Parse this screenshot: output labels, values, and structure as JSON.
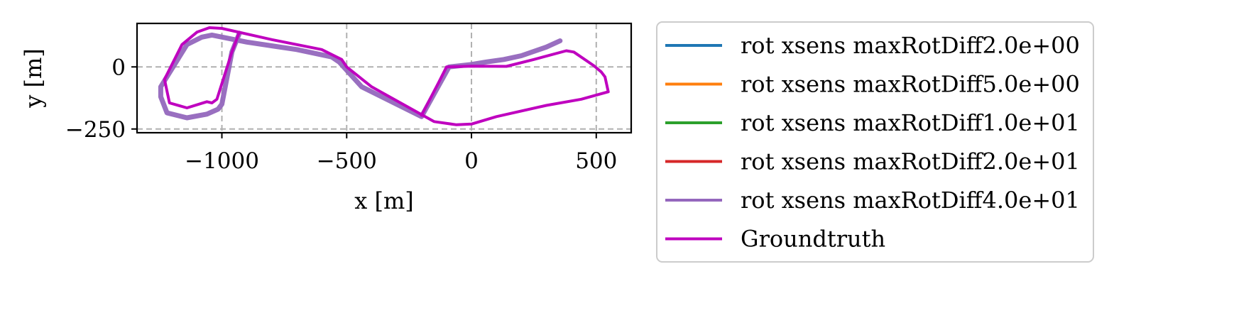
{
  "chart_data": {
    "type": "line",
    "xlabel": "x [m]",
    "ylabel": "y [m]",
    "xlim": [
      -1340,
      640
    ],
    "ylim": [
      -265,
      175
    ],
    "xticks": [
      -1000,
      -500,
      0,
      500
    ],
    "xtick_labels": [
      "−1000",
      "−500",
      "0",
      "500"
    ],
    "yticks": [
      -250,
      0
    ],
    "ytick_labels": [
      "−250",
      "0"
    ],
    "grid": true,
    "legend_position": "outside-right",
    "series": [
      {
        "name": "rot xsens maxRotDiff2.0e+00",
        "color": "#1f77b4",
        "points": []
      },
      {
        "name": "rot xsens maxRotDiff5.0e+00",
        "color": "#ff7f0e",
        "points": []
      },
      {
        "name": "rot xsens maxRotDiff1.0e+01",
        "color": "#2ca02c",
        "points": []
      },
      {
        "name": "rot xsens maxRotDiff2.0e+01",
        "color": "#d62728",
        "points": []
      },
      {
        "name": "rot xsens maxRotDiff4.0e+01",
        "color": "#9467bd",
        "points": [
          [
            355,
            105
          ],
          [
            300,
            80
          ],
          [
            200,
            45
          ],
          [
            130,
            30
          ],
          [
            60,
            20
          ],
          [
            0,
            10
          ],
          [
            -90,
            0
          ],
          [
            -200,
            -200
          ],
          [
            -440,
            -80
          ],
          [
            -530,
            20
          ],
          [
            -560,
            40
          ],
          [
            -700,
            70
          ],
          [
            -900,
            100
          ],
          [
            -1040,
            128
          ],
          [
            -1080,
            120
          ],
          [
            -1140,
            90
          ],
          [
            -1245,
            -80
          ],
          [
            -1245,
            -120
          ],
          [
            -1220,
            -185
          ],
          [
            -1140,
            -205
          ],
          [
            -1060,
            -190
          ],
          [
            -1015,
            -170
          ],
          [
            -1000,
            -150
          ],
          [
            -960,
            60
          ],
          [
            -930,
            135
          ]
        ]
      },
      {
        "name": "Groundtruth",
        "color": "#bf00bf",
        "points": [
          [
            -200,
            -195
          ],
          [
            -130,
            -60
          ],
          [
            -100,
            0
          ],
          [
            0,
            3
          ],
          [
            140,
            2
          ],
          [
            250,
            30
          ],
          [
            380,
            65
          ],
          [
            410,
            60
          ],
          [
            490,
            5
          ],
          [
            520,
            -20
          ],
          [
            535,
            -40
          ],
          [
            548,
            -100
          ],
          [
            440,
            -130
          ],
          [
            300,
            -155
          ],
          [
            100,
            -200
          ],
          [
            0,
            -230
          ],
          [
            -60,
            -233
          ],
          [
            -150,
            -220
          ],
          [
            -400,
            -80
          ],
          [
            -500,
            0
          ],
          [
            -520,
            30
          ],
          [
            -600,
            70
          ],
          [
            -800,
            110
          ],
          [
            -1000,
            155
          ],
          [
            -1050,
            158
          ],
          [
            -1100,
            140
          ],
          [
            -1160,
            90
          ],
          [
            -1230,
            -50
          ],
          [
            -1210,
            -145
          ],
          [
            -1140,
            -165
          ],
          [
            -1060,
            -140
          ],
          [
            -1040,
            -145
          ],
          [
            -1020,
            -130
          ],
          [
            -960,
            60
          ],
          [
            -930,
            140
          ]
        ]
      }
    ]
  }
}
